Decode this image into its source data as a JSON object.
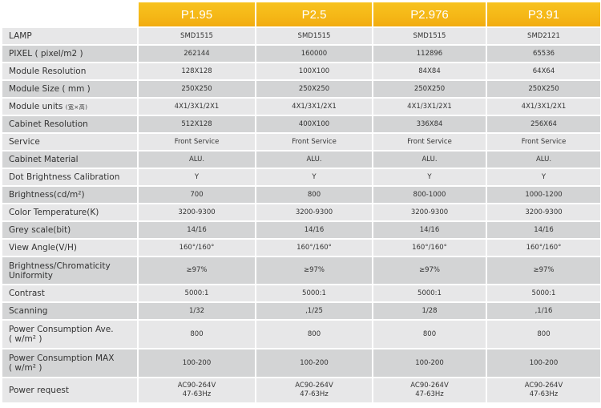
{
  "header": {
    "columns": [
      "P1.95",
      "P2.5",
      "P2.976",
      "P3.91"
    ]
  },
  "rows": [
    {
      "label": "LAMP",
      "values": [
        "SMD1515",
        "SMD1515",
        "SMD1515",
        "SMD2121"
      ]
    },
    {
      "label": "PIXEL ( pixel/m2 )",
      "values": [
        "262144",
        "160000",
        "112896",
        "65536"
      ]
    },
    {
      "label": "Module Resolution",
      "values": [
        "128X128",
        "100X100",
        "84X84",
        "64X64"
      ]
    },
    {
      "label": "Module Size ( mm )",
      "values": [
        "250X250",
        "250X250",
        "250X250",
        "250X250"
      ]
    },
    {
      "label": "Module units",
      "label_suffix": "(宽×高)",
      "values": [
        "4X1/3X1/2X1",
        "4X1/3X1/2X1",
        "4X1/3X1/2X1",
        "4X1/3X1/2X1"
      ]
    },
    {
      "label": "Cabinet Resolution",
      "values": [
        "512X128",
        "400X100",
        "336X84",
        "256X64"
      ]
    },
    {
      "label": "Service",
      "values": [
        "Front Service",
        "Front Service",
        "Front Service",
        "Front Service"
      ]
    },
    {
      "label": "Cabinet Material",
      "values": [
        "ALU.",
        "ALU.",
        "ALU.",
        "ALU."
      ]
    },
    {
      "label": "Dot Brightness Calibration",
      "values": [
        "Y",
        "Y",
        "Y",
        "Y"
      ]
    },
    {
      "label": "Brightness(cd/m²)",
      "values": [
        "700",
        "800",
        "800-1000",
        "1000-1200"
      ]
    },
    {
      "label": "Color Temperature(K)",
      "values": [
        "3200-9300",
        "3200-9300",
        "3200-9300",
        "3200-9300"
      ]
    },
    {
      "label": "Grey scale(bit)",
      "values": [
        "14/16",
        "14/16",
        "14/16",
        "14/16"
      ]
    },
    {
      "label": "View Angle(V/H)",
      "values": [
        "160°/160°",
        "160°/160°",
        "160°/160°",
        "160°/160°"
      ]
    },
    {
      "label_line1": "Brightness/Chromaticity",
      "label_line2": "Uniformity",
      "values": [
        "≥97%",
        "≥97%",
        "≥97%",
        "≥97%"
      ]
    },
    {
      "label": "Contrast",
      "values": [
        "5000:1",
        "5000:1",
        "5000:1",
        "5000:1"
      ]
    },
    {
      "label": "Scanning",
      "values": [
        "1/32",
        ",1/25",
        "1/28",
        ",1/16"
      ]
    },
    {
      "label_line1": "Power Consumption Ave.",
      "label_line2": "( w/m² )",
      "values": [
        "800",
        "800",
        "800",
        "800"
      ]
    },
    {
      "label_line1": "Power Consumption MAX",
      "label_line2": "( w/m² )",
      "values": [
        "100-200",
        "100-200",
        "100-200",
        "100-200"
      ]
    },
    {
      "label": "Power request",
      "values_line1": [
        "AC90-264V",
        "AC90-264V",
        "AC90-264V",
        "AC90-264V"
      ],
      "values_line2": [
        "47-63Hz",
        "47-63Hz",
        "47-63Hz",
        "47-63Hz"
      ]
    }
  ],
  "colors": {
    "header_gold": "#f5b817",
    "row_light": "#e7e7e8",
    "row_dark": "#d3d4d5",
    "text": "#333333"
  }
}
